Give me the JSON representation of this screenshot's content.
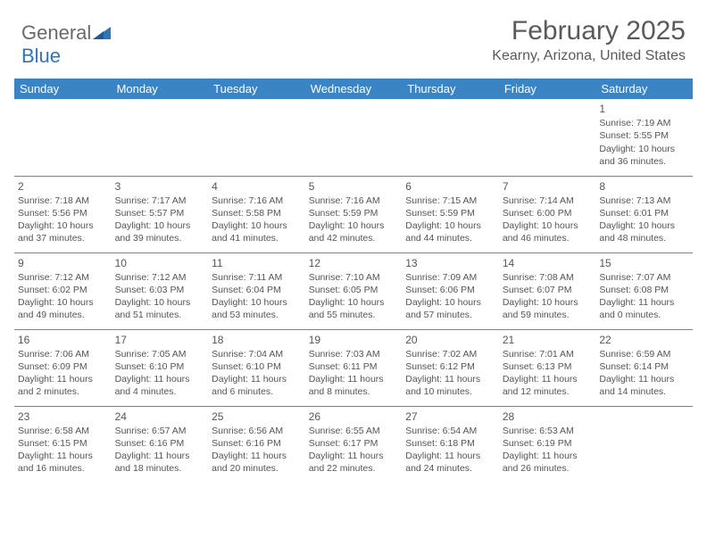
{
  "brand": {
    "part1": "General",
    "part2": "Blue"
  },
  "title": "February 2025",
  "location": "Kearny, Arizona, United States",
  "header_bg": "#3b84c4",
  "days_of_week": [
    "Sunday",
    "Monday",
    "Tuesday",
    "Wednesday",
    "Thursday",
    "Friday",
    "Saturday"
  ],
  "weeks": [
    [
      null,
      null,
      null,
      null,
      null,
      null,
      {
        "n": "1",
        "sunrise": "7:19 AM",
        "sunset": "5:55 PM",
        "daylight": "10 hours and 36 minutes."
      }
    ],
    [
      {
        "n": "2",
        "sunrise": "7:18 AM",
        "sunset": "5:56 PM",
        "daylight": "10 hours and 37 minutes."
      },
      {
        "n": "3",
        "sunrise": "7:17 AM",
        "sunset": "5:57 PM",
        "daylight": "10 hours and 39 minutes."
      },
      {
        "n": "4",
        "sunrise": "7:16 AM",
        "sunset": "5:58 PM",
        "daylight": "10 hours and 41 minutes."
      },
      {
        "n": "5",
        "sunrise": "7:16 AM",
        "sunset": "5:59 PM",
        "daylight": "10 hours and 42 minutes."
      },
      {
        "n": "6",
        "sunrise": "7:15 AM",
        "sunset": "5:59 PM",
        "daylight": "10 hours and 44 minutes."
      },
      {
        "n": "7",
        "sunrise": "7:14 AM",
        "sunset": "6:00 PM",
        "daylight": "10 hours and 46 minutes."
      },
      {
        "n": "8",
        "sunrise": "7:13 AM",
        "sunset": "6:01 PM",
        "daylight": "10 hours and 48 minutes."
      }
    ],
    [
      {
        "n": "9",
        "sunrise": "7:12 AM",
        "sunset": "6:02 PM",
        "daylight": "10 hours and 49 minutes."
      },
      {
        "n": "10",
        "sunrise": "7:12 AM",
        "sunset": "6:03 PM",
        "daylight": "10 hours and 51 minutes."
      },
      {
        "n": "11",
        "sunrise": "7:11 AM",
        "sunset": "6:04 PM",
        "daylight": "10 hours and 53 minutes."
      },
      {
        "n": "12",
        "sunrise": "7:10 AM",
        "sunset": "6:05 PM",
        "daylight": "10 hours and 55 minutes."
      },
      {
        "n": "13",
        "sunrise": "7:09 AM",
        "sunset": "6:06 PM",
        "daylight": "10 hours and 57 minutes."
      },
      {
        "n": "14",
        "sunrise": "7:08 AM",
        "sunset": "6:07 PM",
        "daylight": "10 hours and 59 minutes."
      },
      {
        "n": "15",
        "sunrise": "7:07 AM",
        "sunset": "6:08 PM",
        "daylight": "11 hours and 0 minutes."
      }
    ],
    [
      {
        "n": "16",
        "sunrise": "7:06 AM",
        "sunset": "6:09 PM",
        "daylight": "11 hours and 2 minutes."
      },
      {
        "n": "17",
        "sunrise": "7:05 AM",
        "sunset": "6:10 PM",
        "daylight": "11 hours and 4 minutes."
      },
      {
        "n": "18",
        "sunrise": "7:04 AM",
        "sunset": "6:10 PM",
        "daylight": "11 hours and 6 minutes."
      },
      {
        "n": "19",
        "sunrise": "7:03 AM",
        "sunset": "6:11 PM",
        "daylight": "11 hours and 8 minutes."
      },
      {
        "n": "20",
        "sunrise": "7:02 AM",
        "sunset": "6:12 PM",
        "daylight": "11 hours and 10 minutes."
      },
      {
        "n": "21",
        "sunrise": "7:01 AM",
        "sunset": "6:13 PM",
        "daylight": "11 hours and 12 minutes."
      },
      {
        "n": "22",
        "sunrise": "6:59 AM",
        "sunset": "6:14 PM",
        "daylight": "11 hours and 14 minutes."
      }
    ],
    [
      {
        "n": "23",
        "sunrise": "6:58 AM",
        "sunset": "6:15 PM",
        "daylight": "11 hours and 16 minutes."
      },
      {
        "n": "24",
        "sunrise": "6:57 AM",
        "sunset": "6:16 PM",
        "daylight": "11 hours and 18 minutes."
      },
      {
        "n": "25",
        "sunrise": "6:56 AM",
        "sunset": "6:16 PM",
        "daylight": "11 hours and 20 minutes."
      },
      {
        "n": "26",
        "sunrise": "6:55 AM",
        "sunset": "6:17 PM",
        "daylight": "11 hours and 22 minutes."
      },
      {
        "n": "27",
        "sunrise": "6:54 AM",
        "sunset": "6:18 PM",
        "daylight": "11 hours and 24 minutes."
      },
      {
        "n": "28",
        "sunrise": "6:53 AM",
        "sunset": "6:19 PM",
        "daylight": "11 hours and 26 minutes."
      },
      null
    ]
  ],
  "labels": {
    "sunrise": "Sunrise: ",
    "sunset": "Sunset: ",
    "daylight": "Daylight: "
  }
}
